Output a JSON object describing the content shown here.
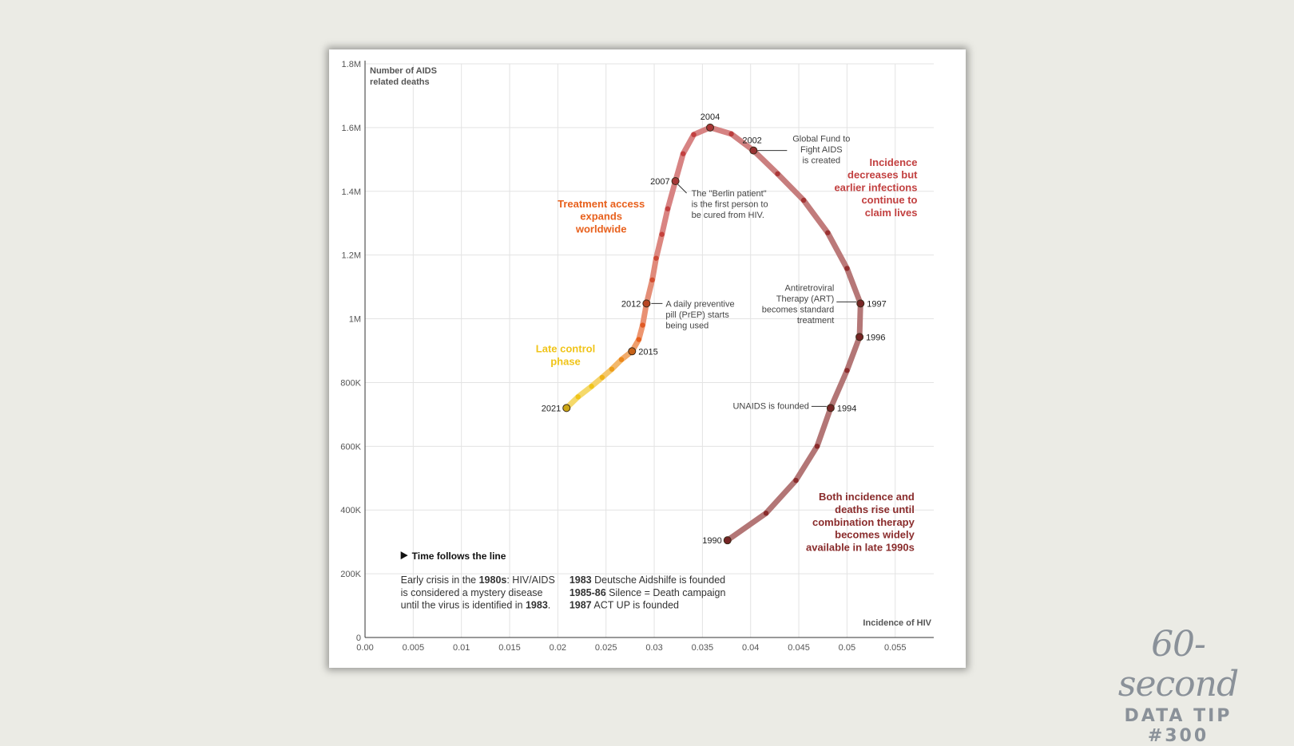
{
  "colors": {
    "background": "#ebebe5",
    "card": "#ffffff",
    "grid": "#e3e3e3",
    "axis": "#333333",
    "early": "#8a2c2c",
    "mid": "#c24040",
    "treatment": "#e8601c",
    "late": "#f0c419",
    "brand": "#8a9199"
  },
  "branding": {
    "script": "60-second",
    "tip": "DATA TIP #300"
  },
  "chart_data": {
    "type": "line",
    "title": "",
    "xlabel": "Incidence of HIV",
    "ylabel": "Number of AIDS related deaths",
    "xlim": [
      0,
      0.059
    ],
    "ylim": [
      0,
      1800000
    ],
    "x_ticks": [
      "0.00",
      "0.005",
      "0.01",
      "0.015",
      "0.02",
      "0.025",
      "0.03",
      "0.035",
      "0.04",
      "0.045",
      "0.05",
      "0.055"
    ],
    "y_ticks": [
      "0",
      "200K",
      "400K",
      "600K",
      "800K",
      "1M",
      "1.2M",
      "1.4M",
      "1.6M",
      "1.8M"
    ],
    "points": [
      {
        "year": 1990,
        "x": 0.0376,
        "y": 305000,
        "label": "1990"
      },
      {
        "year": 1991,
        "x": 0.0416,
        "y": 390000
      },
      {
        "year": 1992,
        "x": 0.0447,
        "y": 493000
      },
      {
        "year": 1993,
        "x": 0.0469,
        "y": 600000
      },
      {
        "year": 1994,
        "x": 0.0483,
        "y": 720000,
        "label": "1994"
      },
      {
        "year": 1995,
        "x": 0.05,
        "y": 838000
      },
      {
        "year": 1996,
        "x": 0.0513,
        "y": 943000,
        "label": "1996"
      },
      {
        "year": 1997,
        "x": 0.0514,
        "y": 1048000,
        "label": "1997"
      },
      {
        "year": 1998,
        "x": 0.05,
        "y": 1158000
      },
      {
        "year": 1999,
        "x": 0.048,
        "y": 1270000
      },
      {
        "year": 2000,
        "x": 0.0455,
        "y": 1372000
      },
      {
        "year": 2001,
        "x": 0.0428,
        "y": 1455000
      },
      {
        "year": 2002,
        "x": 0.0403,
        "y": 1528000,
        "label": "2002"
      },
      {
        "year": 2003,
        "x": 0.038,
        "y": 1580000
      },
      {
        "year": 2004,
        "x": 0.0358,
        "y": 1600000,
        "label": "2004"
      },
      {
        "year": 2005,
        "x": 0.0341,
        "y": 1578000
      },
      {
        "year": 2006,
        "x": 0.033,
        "y": 1518000
      },
      {
        "year": 2007,
        "x": 0.0322,
        "y": 1432000,
        "label": "2007"
      },
      {
        "year": 2008,
        "x": 0.0314,
        "y": 1345000
      },
      {
        "year": 2009,
        "x": 0.0308,
        "y": 1265000
      },
      {
        "year": 2010,
        "x": 0.0302,
        "y": 1190000
      },
      {
        "year": 2011,
        "x": 0.0298,
        "y": 1122000
      },
      {
        "year": 2012,
        "x": 0.0292,
        "y": 1048000,
        "label": "2012"
      },
      {
        "year": 2013,
        "x": 0.0288,
        "y": 980000
      },
      {
        "year": 2014,
        "x": 0.0284,
        "y": 935000
      },
      {
        "year": 2015,
        "x": 0.0277,
        "y": 898000,
        "label": "2015"
      },
      {
        "year": 2016,
        "x": 0.0266,
        "y": 872000
      },
      {
        "year": 2017,
        "x": 0.0256,
        "y": 842000
      },
      {
        "year": 2018,
        "x": 0.0246,
        "y": 816000
      },
      {
        "year": 2019,
        "x": 0.0235,
        "y": 788000
      },
      {
        "year": 2020,
        "x": 0.0221,
        "y": 755000
      },
      {
        "year": 2021,
        "x": 0.0209,
        "y": 720000,
        "label": "2021"
      }
    ],
    "milestones": [
      {
        "year": 1994,
        "text": [
          "UNAIDS is founded"
        ]
      },
      {
        "year": 1997,
        "text": [
          "Antiretroviral",
          "Therapy (ART)",
          "becomes standard",
          "treatment"
        ]
      },
      {
        "year": 2002,
        "text": [
          "Global Fund to",
          "Fight AIDS",
          "is created"
        ]
      },
      {
        "year": 2007,
        "text": [
          "The \"Berlin patient\"",
          "is the first person to",
          "be cured from HIV."
        ]
      },
      {
        "year": 2012,
        "text": [
          "A daily preventive",
          "pill (PrEP) starts",
          "being used"
        ]
      }
    ],
    "phases": [
      {
        "name": "early",
        "lines": [
          "Both incidence and",
          "deaths rise until",
          "combination therapy",
          "becomes widely",
          "available in late 1990s"
        ]
      },
      {
        "name": "mid",
        "lines": [
          "Incidence",
          "decreases but",
          "earlier infections",
          "continue to",
          "claim lives"
        ]
      },
      {
        "name": "treatment",
        "lines": [
          "Treatment access",
          "expands",
          "worldwide"
        ]
      },
      {
        "name": "late",
        "lines": [
          "Late control",
          "phase"
        ]
      }
    ],
    "notes": {
      "time_title": "Time follows the line",
      "early_crisis": [
        [
          {
            "t": "Early crisis in the "
          },
          {
            "t": "1980s",
            "b": true
          },
          {
            "t": ": HIV/AIDS"
          }
        ],
        [
          {
            "t": "is considered a mystery disease"
          }
        ],
        [
          {
            "t": "until the virus is identified in "
          },
          {
            "t": "1983",
            "b": true
          },
          {
            "t": "."
          }
        ]
      ],
      "events_1980s": [
        [
          {
            "t": "1983",
            "b": true
          },
          {
            "t": " Deutsche Aidshilfe is founded"
          }
        ],
        [
          {
            "t": "1985-86",
            "b": true
          },
          {
            "t": " Silence = Death campaign"
          }
        ],
        [
          {
            "t": "1987",
            "b": true
          },
          {
            "t": " ACT UP is founded"
          }
        ]
      ]
    }
  }
}
